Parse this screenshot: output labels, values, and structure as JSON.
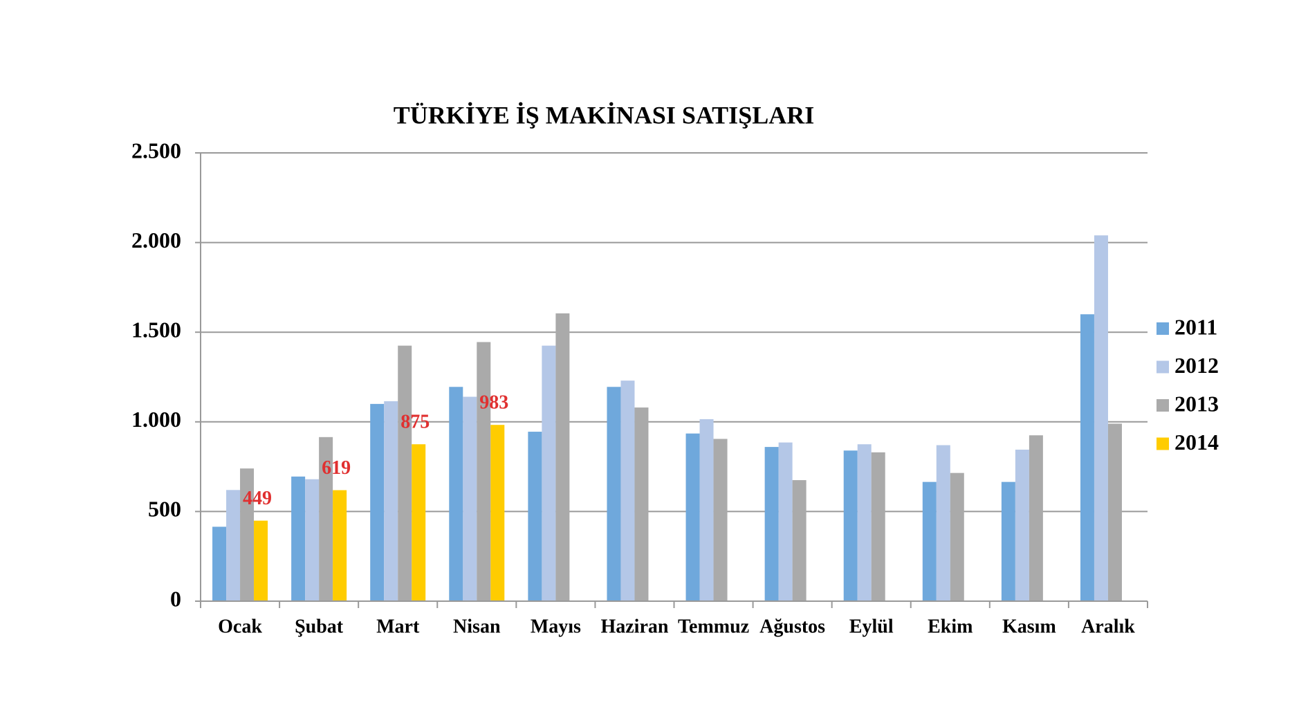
{
  "chart_data": {
    "type": "bar",
    "title": "TÜRKİYE İŞ MAKİNASI SATIŞLARI",
    "categories": [
      "Ocak",
      "Şubat",
      "Mart",
      "Nisan",
      "Mayıs",
      "Haziran",
      "Temmuz",
      "Ağustos",
      "Eylül",
      "Ekim",
      "Kasım",
      "Aralık"
    ],
    "series": [
      {
        "name": "2011",
        "color": "#6fa8dc",
        "values": [
          415,
          695,
          1100,
          1195,
          945,
          1195,
          935,
          860,
          840,
          665,
          665,
          1600
        ]
      },
      {
        "name": "2012",
        "color": "#b4c7e7",
        "values": [
          620,
          680,
          1115,
          1140,
          1425,
          1230,
          1015,
          885,
          875,
          870,
          845,
          2040
        ]
      },
      {
        "name": "2013",
        "color": "#aaaaaa",
        "values": [
          740,
          915,
          1425,
          1445,
          1605,
          1080,
          905,
          675,
          830,
          715,
          925,
          990
        ]
      },
      {
        "name": "2014",
        "color": "#ffcc00",
        "values": [
          449,
          619,
          875,
          983,
          null,
          null,
          null,
          null,
          null,
          null,
          null,
          null
        ],
        "data_labels": true,
        "label_color": "#e03030"
      }
    ],
    "ylim": [
      0,
      2500
    ],
    "yticks": [
      0,
      500,
      {
        "value": 1000,
        "label": "1.000"
      },
      {
        "value": 1500,
        "label": "1.500"
      },
      {
        "value": 2000,
        "label": "2.000"
      },
      {
        "value": 2500,
        "label": "2.500"
      }
    ],
    "grid": true,
    "legend": "right"
  }
}
